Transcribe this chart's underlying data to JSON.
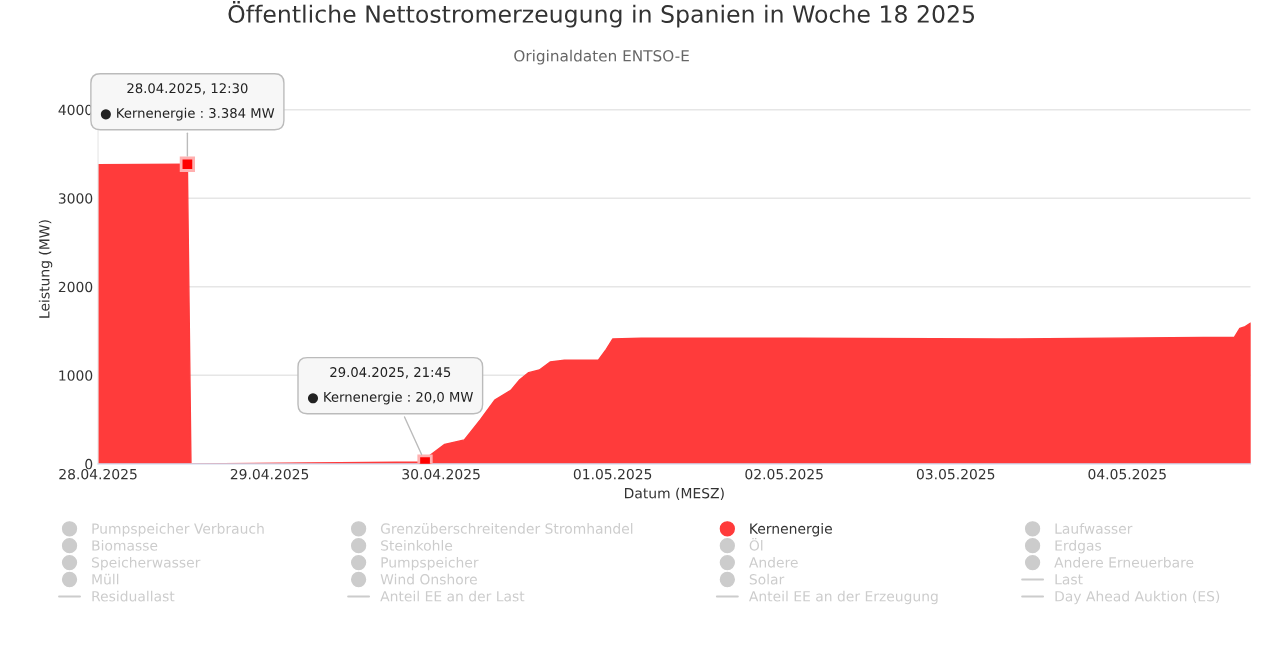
{
  "chart_data": {
    "type": "area",
    "title": "Öffentliche Nettostromerzeugung in Spanien in Woche 18 2025",
    "subtitle": "Originaldaten ENTSO-E",
    "xlabel": "Datum (MESZ)",
    "ylabel": "Leistung (MW)",
    "series": [
      {
        "name": "Pumpspeicher Verbrauch",
        "color": "#cccccc"
      },
      {
        "name": "Grenzüberschreitender Stromhandel",
        "color": "#cccccc"
      },
      {
        "name": "Kernenergie",
        "color": "#ff3b3b",
        "x": [
          "2025-04-28T00:00",
          "2025-04-28T12:30",
          "2025-04-28T13:00",
          "2025-04-29T21:45",
          "2025-04-29T22:30",
          "2025-04-30T00:30",
          "2025-04-30T03:15",
          "2025-04-30T05:30",
          "2025-04-30T07:30",
          "2025-04-30T09:45",
          "2025-04-30T11:00",
          "2025-04-30T12:15",
          "2025-04-30T13:45",
          "2025-04-30T15:15",
          "2025-04-30T17:15",
          "2025-04-30T22:00",
          "2025-04-30T23:00",
          "2025-05-01T00:00",
          "2025-05-01T04:00",
          "2025-05-02T02:15",
          "2025-05-03T06:15",
          "2025-05-04T15:00",
          "2025-05-04T15:45",
          "2025-05-04T16:30",
          "2025-05-04T17:15"
        ],
        "values": [
          3380,
          3384,
          0,
          20,
          100,
          220,
          270,
          500,
          720,
          830,
          950,
          1030,
          1060,
          1150,
          1170,
          1170,
          1280,
          1410,
          1420,
          1420,
          1410,
          1430,
          1530,
          1550,
          1590
        ]
      },
      {
        "name": "Laufwasser",
        "color": "#cccccc"
      },
      {
        "name": "Biomasse",
        "color": "#cccccc"
      },
      {
        "name": "Steinkohle",
        "color": "#cccccc"
      },
      {
        "name": "Öl",
        "color": "#cccccc"
      },
      {
        "name": "Erdgas",
        "color": "#cccccc"
      },
      {
        "name": "Speicherwasser",
        "color": "#cccccc"
      },
      {
        "name": "Pumpspeicher",
        "color": "#cccccc"
      },
      {
        "name": "Andere",
        "color": "#cccccc"
      },
      {
        "name": "Andere Erneuerbare",
        "color": "#cccccc"
      },
      {
        "name": "Müll",
        "color": "#cccccc"
      },
      {
        "name": "Wind Onshore",
        "color": "#cccccc"
      },
      {
        "name": "Solar",
        "color": "#cccccc"
      },
      {
        "name": "Last",
        "type": "line",
        "color": "#cccccc"
      },
      {
        "name": "Residuallast",
        "type": "line",
        "color": "#cccccc"
      },
      {
        "name": "Anteil EE an der Last",
        "type": "line",
        "color": "#cccccc"
      },
      {
        "name": "Anteil EE an der Erzeugung",
        "type": "line",
        "color": "#cccccc"
      },
      {
        "name": "Day Ahead Auktion (ES)",
        "type": "line",
        "color": "#cccccc"
      }
    ],
    "xlim": [
      "2025-04-28T00:00",
      "2025-05-04T17:15"
    ],
    "xticks": [
      {
        "value": "2025-04-28",
        "label": "28.04.2025"
      },
      {
        "value": "2025-04-29",
        "label": "29.04.2025"
      },
      {
        "value": "2025-04-30",
        "label": "30.04.2025"
      },
      {
        "value": "2025-05-01",
        "label": "01.05.2025"
      },
      {
        "value": "2025-05-02",
        "label": "02.05.2025"
      },
      {
        "value": "2025-05-03",
        "label": "03.05.2025"
      },
      {
        "value": "2025-05-04",
        "label": "04.05.2025"
      }
    ],
    "ylim": [
      0,
      4400
    ],
    "yticks": [
      0,
      1000,
      2000,
      3000,
      4000
    ],
    "grid": "y",
    "legend": "bottom",
    "annotations": [
      {
        "text": "28.04.2025, 12:30\n● Kernenergie : 3.384 MW",
        "x": "2025-04-28T12:30",
        "y": 3384
      },
      {
        "text": "29.04.2025, 21:45\n● Kernenergie : 20,0 MW",
        "x": "2025-04-29T21:45",
        "y": 20
      }
    ]
  }
}
